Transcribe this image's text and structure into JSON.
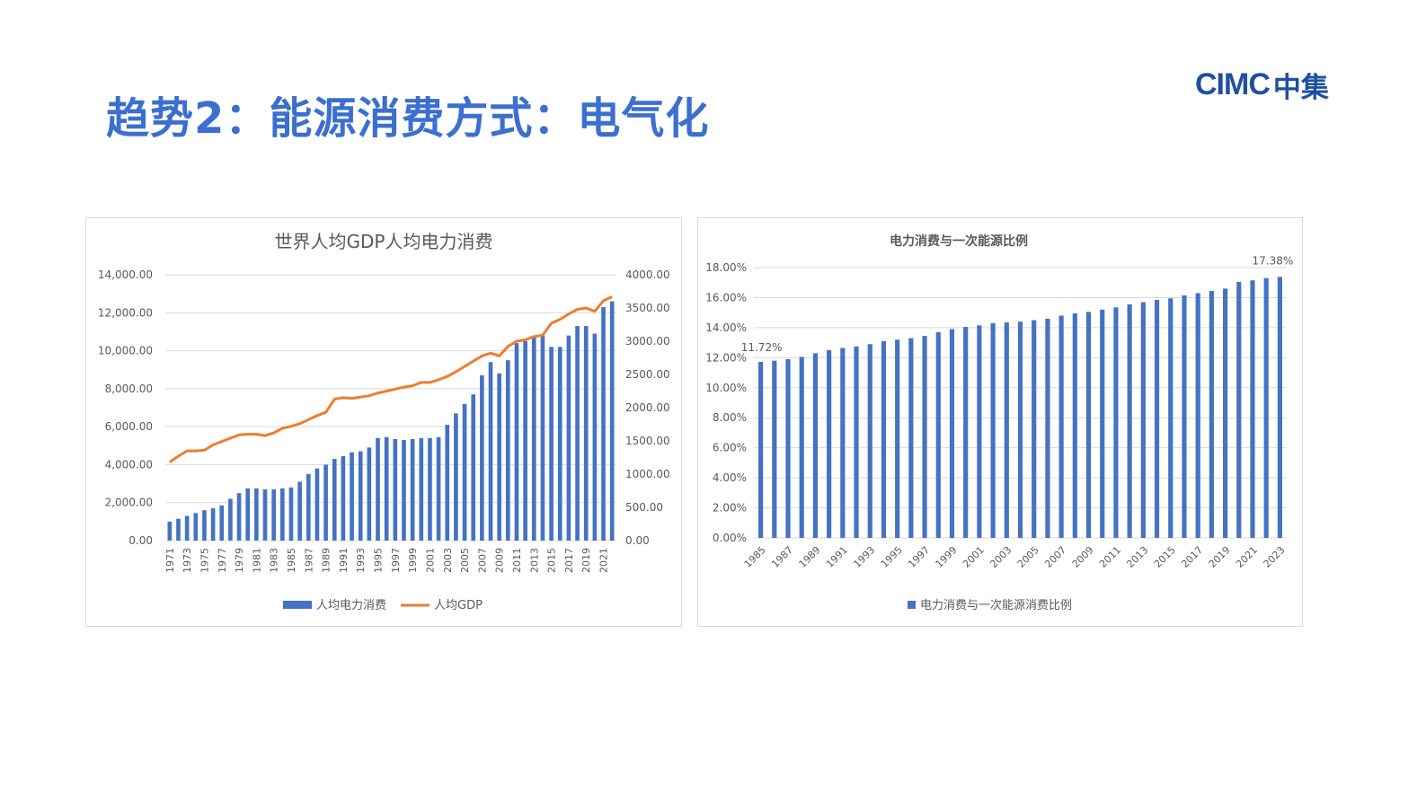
{
  "page": {
    "title": "趋势2：能源消费方式：电气化",
    "logo": {
      "text": "CIMC",
      "cn": "中集"
    }
  },
  "chart_data": [
    {
      "type": "bar+line",
      "title": "世界人均GDP人均电力消费",
      "categories": [
        1971,
        1972,
        1973,
        1974,
        1975,
        1976,
        1977,
        1978,
        1979,
        1980,
        1981,
        1982,
        1983,
        1984,
        1985,
        1986,
        1987,
        1988,
        1989,
        1990,
        1991,
        1992,
        1993,
        1994,
        1995,
        1996,
        1997,
        1998,
        1999,
        2000,
        2001,
        2002,
        2003,
        2004,
        2005,
        2006,
        2007,
        2008,
        2009,
        2010,
        2011,
        2012,
        2013,
        2014,
        2015,
        2016,
        2017,
        2018,
        2019,
        2020,
        2021,
        2022
      ],
      "x_tick_labels": [
        "1971",
        "1973",
        "1975",
        "1977",
        "1979",
        "1981",
        "1983",
        "1985",
        "1987",
        "1989",
        "1991",
        "1993",
        "1995",
        "1997",
        "1999",
        "2001",
        "2003",
        "2005",
        "2007",
        "2009",
        "2011",
        "2013",
        "2015",
        "2017",
        "2019",
        "2021"
      ],
      "series": [
        {
          "name": "人均电力消费",
          "type": "bar",
          "axis": "left",
          "color": "#4472c4",
          "values": [
            1000,
            1150,
            1300,
            1450,
            1600,
            1700,
            1850,
            2200,
            2500,
            2750,
            2750,
            2700,
            2700,
            2750,
            2800,
            3100,
            3500,
            3800,
            4000,
            4300,
            4450,
            4650,
            4700,
            4900,
            5400,
            5450,
            5350,
            5300,
            5350,
            5400,
            5400,
            5450,
            6100,
            6700,
            7200,
            7700,
            8700,
            9400,
            8800,
            9500,
            10400,
            10500,
            10700,
            10800,
            10200,
            10200,
            10800,
            11300,
            11300,
            10900,
            12300,
            12600
          ]
        },
        {
          "name": "人均GDP",
          "type": "line",
          "axis": "right",
          "color": "#ed7d31",
          "values": [
            1180,
            1270,
            1350,
            1350,
            1360,
            1440,
            1490,
            1540,
            1590,
            1600,
            1600,
            1580,
            1620,
            1690,
            1720,
            1760,
            1820,
            1880,
            1930,
            2130,
            2150,
            2140,
            2160,
            2180,
            2220,
            2250,
            2280,
            2310,
            2330,
            2380,
            2380,
            2420,
            2470,
            2540,
            2620,
            2700,
            2780,
            2820,
            2780,
            2920,
            3000,
            3020,
            3070,
            3090,
            3270,
            3330,
            3410,
            3480,
            3500,
            3450,
            3610,
            3670
          ]
        }
      ],
      "y_left": {
        "min": 0,
        "max": 14000,
        "ticks": [
          "0.00",
          "2,000.00",
          "4,000.00",
          "6,000.00",
          "8,000.00",
          "10,000.00",
          "12,000.00",
          "14,000.00"
        ]
      },
      "y_right": {
        "min": 0,
        "max": 4000,
        "ticks": [
          "0.00",
          "500.00",
          "1000.00",
          "1500.00",
          "2000.00",
          "2500.00",
          "3000.00",
          "3500.00",
          "4000.00"
        ]
      },
      "grid": true,
      "legend": "bottom"
    },
    {
      "type": "bar",
      "title": "电力消费与一次能源比例",
      "categories": [
        1985,
        1986,
        1987,
        1988,
        1989,
        1990,
        1991,
        1992,
        1993,
        1994,
        1995,
        1996,
        1997,
        1998,
        1999,
        2000,
        2001,
        2002,
        2003,
        2004,
        2005,
        2006,
        2007,
        2008,
        2009,
        2010,
        2011,
        2012,
        2013,
        2014,
        2015,
        2016,
        2017,
        2018,
        2019,
        2020,
        2021,
        2022,
        2023
      ],
      "x_tick_labels": [
        "1985",
        "1987",
        "1989",
        "1991",
        "1993",
        "1995",
        "1997",
        "1999",
        "2001",
        "2003",
        "2005",
        "2007",
        "2009",
        "2011",
        "2013",
        "2015",
        "2017",
        "2019",
        "2021",
        "2023"
      ],
      "series": [
        {
          "name": "电力消费与一次能源消费比例",
          "color": "#4472c4",
          "values": [
            11.72,
            11.8,
            11.9,
            12.05,
            12.3,
            12.5,
            12.65,
            12.75,
            12.9,
            13.1,
            13.2,
            13.3,
            13.45,
            13.7,
            13.9,
            14.05,
            14.15,
            14.3,
            14.35,
            14.4,
            14.5,
            14.6,
            14.8,
            14.95,
            15.05,
            15.2,
            15.35,
            15.55,
            15.7,
            15.85,
            15.95,
            16.15,
            16.3,
            16.45,
            16.6,
            17.05,
            17.15,
            17.3,
            17.38
          ]
        }
      ],
      "data_labels": {
        "first": "11.72%",
        "last": "17.38%"
      },
      "y": {
        "min": 0,
        "max": 18,
        "ticks": [
          "0.00%",
          "2.00%",
          "4.00%",
          "6.00%",
          "8.00%",
          "10.00%",
          "12.00%",
          "14.00%",
          "16.00%",
          "18.00%"
        ]
      },
      "grid": true,
      "legend": "bottom"
    }
  ]
}
